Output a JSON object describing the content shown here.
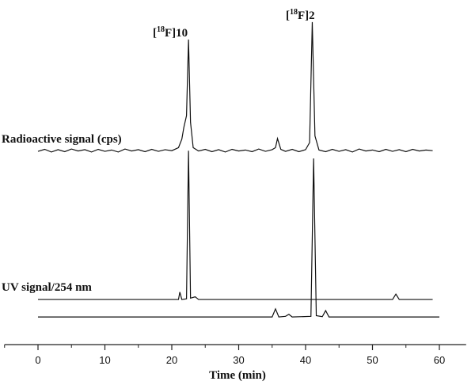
{
  "chart_data": {
    "type": "line",
    "xlabel": "Time (min)",
    "xlim": [
      -5,
      64
    ],
    "xticks": [
      0,
      10,
      20,
      30,
      40,
      50,
      60
    ],
    "xminorticks": [
      -5,
      5,
      15,
      25,
      35,
      45,
      55
    ],
    "ylim": [
      0,
      100
    ],
    "color": "#111111",
    "annotations": [
      {
        "pre": "[",
        "sup": "18",
        "post": "F]10"
      },
      {
        "pre": "[",
        "sup": "18",
        "post": "F]2"
      }
    ],
    "series": [
      {
        "name": "Radioactive signal (cps)",
        "x": [
          0,
          1,
          2,
          3,
          4,
          5,
          6,
          7,
          8,
          9,
          10,
          11,
          12,
          13,
          14,
          15,
          16,
          17,
          18,
          19,
          20,
          21,
          21.5,
          21.8,
          22.2,
          22.5,
          22.8,
          23.2,
          24,
          25,
          26,
          27,
          28,
          29,
          30,
          31,
          32,
          33,
          34,
          35,
          35.5,
          35.8,
          36.3,
          37,
          38,
          39,
          40,
          40.6,
          41,
          41.4,
          42,
          43,
          44,
          45,
          46,
          47,
          48,
          49,
          50,
          51,
          52,
          53,
          54,
          55,
          56,
          57,
          58,
          59
        ],
        "values": [
          57.4,
          58.0,
          57.2,
          57.9,
          57.3,
          58.1,
          57.5,
          57.9,
          57.2,
          58.0,
          57.4,
          57.8,
          57.2,
          58.1,
          57.5,
          57.9,
          57.3,
          58.0,
          57.4,
          57.9,
          57.6,
          58.5,
          61,
          64.5,
          68,
          90.6,
          66,
          58.5,
          57.5,
          58.0,
          57.3,
          57.9,
          57.2,
          58.0,
          57.5,
          57.8,
          57.3,
          58.1,
          57.4,
          57.9,
          58.5,
          61.2,
          58,
          57.4,
          58.0,
          57.3,
          57.9,
          60,
          95.8,
          62,
          57.8,
          57.3,
          58.0,
          57.4,
          57.9,
          57.2,
          58.1,
          57.5,
          57.8,
          57.3,
          58.0,
          57.4,
          57.9,
          57.3,
          58.0,
          57.5,
          57.8,
          57.6
        ]
      },
      {
        "name": "UV signal/254 nm",
        "x": [
          0,
          21,
          21.2,
          21.5,
          22.2,
          22.5,
          22.8,
          23.5,
          24,
          53,
          53.5,
          54,
          59
        ],
        "values": [
          13.4,
          13.4,
          15.6,
          13.4,
          13.6,
          57.6,
          13.8,
          14.2,
          13.4,
          13.4,
          15,
          13.4,
          13.4
        ]
      },
      {
        "x": [
          0,
          35,
          35.5,
          36,
          37,
          37.5,
          38,
          40.8,
          41.2,
          41.6,
          42.5,
          43,
          43.5,
          60
        ],
        "values": [
          8.2,
          8.2,
          10.6,
          8.2,
          8.4,
          9,
          8.2,
          8.4,
          55.3,
          8.6,
          8.3,
          10.1,
          8.2,
          8.2
        ]
      }
    ]
  }
}
